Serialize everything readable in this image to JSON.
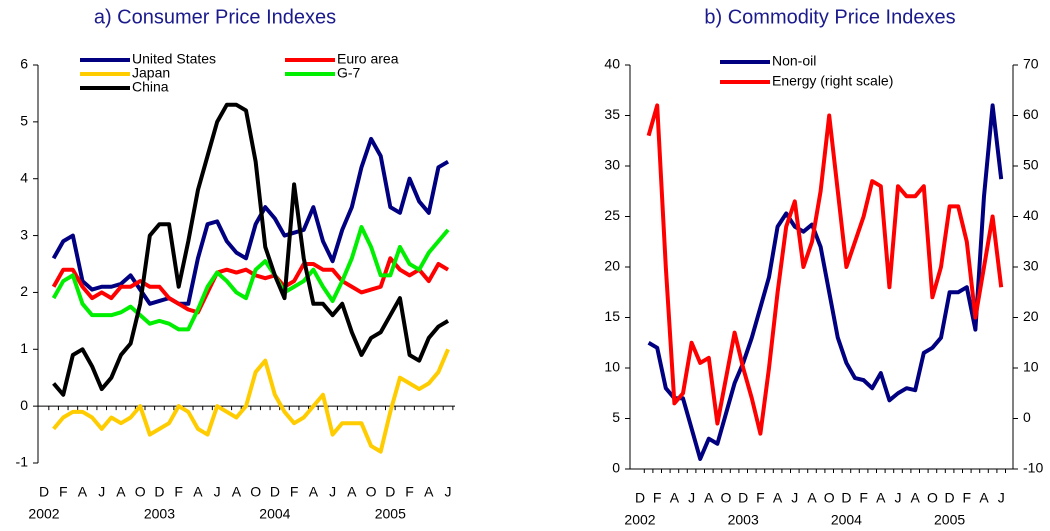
{
  "chart_data": [
    {
      "type": "line",
      "title": "a) Consumer Price Indexes",
      "categories": [
        "D",
        null,
        "F",
        null,
        "A",
        null,
        "J",
        null,
        "A",
        null,
        "O",
        null,
        "D",
        null,
        "F",
        null,
        "A",
        null,
        "J",
        null,
        "A",
        null,
        "O",
        null,
        "D",
        null,
        "F",
        null,
        "A",
        null,
        "J",
        null,
        "A",
        null,
        "O",
        null,
        "D",
        null,
        "F",
        null,
        "A",
        null,
        "J"
      ],
      "year_labels": [
        "2002",
        "2003",
        "2004",
        "2005"
      ],
      "ylim": [
        -1,
        6
      ],
      "yticks": [
        -1,
        0,
        1,
        2,
        3,
        4,
        5,
        6
      ],
      "series": [
        {
          "name": "United States",
          "color": "#000080",
          "values": [
            null,
            2.6,
            2.9,
            3.0,
            2.2,
            2.05,
            2.1,
            2.1,
            2.15,
            2.3,
            2.05,
            1.8,
            1.85,
            1.9,
            1.8,
            1.8,
            2.6,
            3.2,
            3.25,
            2.9,
            2.7,
            2.6,
            3.2,
            3.5,
            3.3,
            3.0,
            3.05,
            3.1,
            3.5,
            2.9,
            2.55,
            3.1,
            3.5,
            4.2,
            4.7,
            4.4,
            3.5,
            3.4,
            4.0,
            3.6,
            3.4,
            4.2,
            4.3
          ]
        },
        {
          "name": "Euro area",
          "color": "#ff0000",
          "values": [
            null,
            2.1,
            2.4,
            2.4,
            2.1,
            1.9,
            2.0,
            1.9,
            2.1,
            2.1,
            2.2,
            2.1,
            2.1,
            1.9,
            1.8,
            1.7,
            1.65,
            2.0,
            2.35,
            2.4,
            2.35,
            2.4,
            2.3,
            2.25,
            2.3,
            2.1,
            2.2,
            2.5,
            2.5,
            2.4,
            2.4,
            2.2,
            2.1,
            2.0,
            2.05,
            2.1,
            2.6,
            2.4,
            2.3,
            2.4,
            2.2,
            2.5,
            2.4
          ]
        },
        {
          "name": "Japan",
          "color": "#ffcc00",
          "values": [
            null,
            -0.4,
            -0.2,
            -0.1,
            -0.1,
            -0.2,
            -0.4,
            -0.2,
            -0.3,
            -0.2,
            0.0,
            -0.5,
            -0.4,
            -0.3,
            0.0,
            -0.1,
            -0.4,
            -0.5,
            0.0,
            -0.1,
            -0.2,
            0.0,
            0.6,
            0.8,
            0.2,
            -0.1,
            -0.3,
            -0.2,
            0.0,
            0.2,
            -0.5,
            -0.3,
            -0.3,
            -0.3,
            -0.7,
            -0.8,
            -0.1,
            0.5,
            0.4,
            0.3,
            0.4,
            0.6,
            1.0
          ]
        },
        {
          "name": "G-7",
          "color": "#00ee00",
          "values": [
            null,
            1.9,
            2.2,
            2.3,
            1.8,
            1.6,
            1.6,
            1.6,
            1.65,
            1.75,
            1.6,
            1.45,
            1.5,
            1.45,
            1.35,
            1.35,
            1.7,
            2.1,
            2.35,
            2.2,
            2.0,
            1.9,
            2.4,
            2.55,
            2.3,
            2.0,
            2.1,
            2.2,
            2.4,
            2.1,
            1.85,
            2.2,
            2.6,
            3.15,
            2.8,
            2.3,
            2.3,
            2.8,
            2.5,
            2.4,
            2.7,
            2.9,
            3.1
          ]
        },
        {
          "name": "China",
          "color": "#000000",
          "values": [
            null,
            0.4,
            0.2,
            0.9,
            1.0,
            0.7,
            0.3,
            0.5,
            0.9,
            1.1,
            1.8,
            3.0,
            3.2,
            3.2,
            2.1,
            2.9,
            3.8,
            4.4,
            5.0,
            5.3,
            5.3,
            5.2,
            4.3,
            2.8,
            2.3,
            1.9,
            3.9,
            2.6,
            1.8,
            1.8,
            1.6,
            1.8,
            1.3,
            0.9,
            1.2,
            1.3,
            1.6,
            1.9,
            0.9,
            0.8,
            1.2,
            1.4,
            1.5
          ]
        }
      ]
    },
    {
      "type": "line",
      "title": "b) Commodity Price Indexes",
      "categories": [
        "D",
        null,
        "F",
        null,
        "A",
        null,
        "J",
        null,
        "A",
        null,
        "O",
        null,
        "D",
        null,
        "F",
        null,
        "A",
        null,
        "J",
        null,
        "A",
        null,
        "O",
        null,
        "D",
        null,
        "F",
        null,
        "A",
        null,
        "J",
        null,
        "A",
        null,
        "O",
        null,
        "D",
        null,
        "F",
        null,
        "A",
        null,
        "J"
      ],
      "year_labels": [
        "2002",
        "2003",
        "2004",
        "2005"
      ],
      "ylim": [
        0,
        40
      ],
      "yticks": [
        0,
        5,
        10,
        15,
        20,
        25,
        30,
        35,
        40
      ],
      "y2lim": [
        -10,
        70
      ],
      "y2ticks": [
        -10,
        0,
        10,
        20,
        30,
        40,
        50,
        60,
        70
      ],
      "series": [
        {
          "name": "Non-oil",
          "color": "#000080",
          "values": [
            null,
            12.5,
            12.0,
            8.0,
            7.0,
            7.0,
            4.0,
            1.0,
            3.0,
            2.5,
            5.5,
            8.5,
            10.5,
            13.0,
            16.0,
            19.0,
            24.0,
            25.3,
            24.0,
            23.5,
            24.2,
            22.0,
            17.5,
            13.0,
            10.5,
            9.0,
            8.8,
            8.0,
            9.5,
            6.8,
            7.5,
            8.0,
            7.8,
            11.5,
            12.0,
            13.0,
            17.5,
            17.5,
            18.0,
            13.8,
            27.0,
            36.0,
            28.7
          ]
        },
        {
          "name": "Energy (right scale)",
          "color": "#ff0000",
          "axis": "y2",
          "values": [
            null,
            56,
            62,
            30,
            3,
            5,
            15,
            11,
            12,
            -1,
            8,
            17,
            10,
            4,
            -3,
            10,
            25,
            38,
            43,
            30,
            35,
            45,
            60,
            45,
            30,
            35,
            40,
            47,
            46,
            26,
            46,
            44,
            44,
            46,
            24,
            30,
            42,
            42,
            35,
            20,
            30,
            40,
            26
          ]
        }
      ]
    }
  ]
}
